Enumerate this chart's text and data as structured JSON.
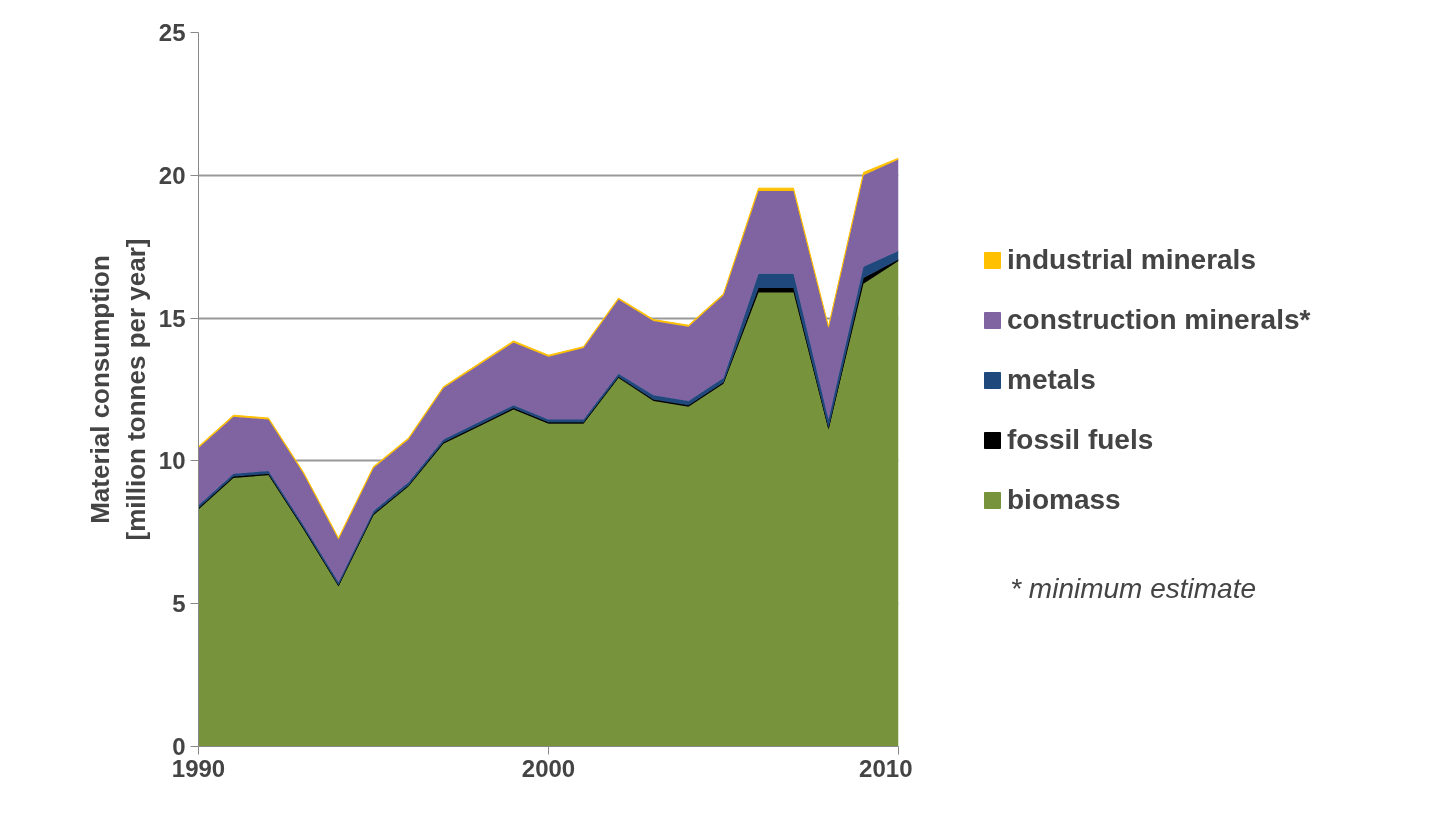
{
  "chart_data": {
    "type": "area",
    "stacked": true,
    "ylabel": "Material consumption\n[million tonnes per year]",
    "x": [
      1990,
      1991,
      1992,
      1993,
      1994,
      1995,
      1996,
      1997,
      1998,
      1999,
      2000,
      2001,
      2002,
      2003,
      2004,
      2005,
      2006,
      2007,
      2008,
      2009,
      2010
    ],
    "series": [
      {
        "name": "biomass",
        "color": "#77933c",
        "values": [
          8.3,
          9.4,
          9.5,
          7.6,
          5.6,
          8.1,
          9.1,
          10.6,
          11.2,
          11.8,
          11.3,
          11.3,
          12.9,
          12.1,
          11.9,
          12.7,
          15.9,
          15.9,
          11.1,
          16.2,
          17.0
        ]
      },
      {
        "name": "fossil fuels",
        "color": "#000000",
        "values": [
          0.05,
          0.05,
          0.05,
          0.05,
          0.05,
          0.05,
          0.05,
          0.05,
          0.05,
          0.05,
          0.05,
          0.05,
          0.05,
          0.05,
          0.05,
          0.05,
          0.15,
          0.15,
          0.05,
          0.2,
          0.05
        ]
      },
      {
        "name": "metals",
        "color": "#1f497d",
        "values": [
          0.1,
          0.1,
          0.1,
          0.1,
          0.1,
          0.1,
          0.1,
          0.1,
          0.1,
          0.1,
          0.1,
          0.1,
          0.1,
          0.15,
          0.15,
          0.15,
          0.5,
          0.5,
          0.3,
          0.4,
          0.3
        ]
      },
      {
        "name": "construction minerals*",
        "color": "#8064a2",
        "values": [
          2.0,
          2.0,
          1.8,
          1.8,
          1.5,
          1.5,
          1.5,
          1.8,
          2.0,
          2.2,
          2.2,
          2.5,
          2.6,
          2.6,
          2.6,
          2.9,
          2.9,
          2.9,
          3.2,
          3.2,
          3.2
        ]
      },
      {
        "name": "industrial minerals",
        "color": "#ffc000",
        "values": [
          0.05,
          0.05,
          0.05,
          0.05,
          0.05,
          0.05,
          0.05,
          0.05,
          0.05,
          0.05,
          0.05,
          0.05,
          0.05,
          0.05,
          0.05,
          0.05,
          0.1,
          0.1,
          0.05,
          0.1,
          0.05
        ]
      }
    ],
    "xlim": [
      1990,
      2010
    ],
    "xticks": [
      1990,
      2000,
      2010
    ],
    "ylim": [
      0,
      25
    ],
    "yticks": [
      0,
      5,
      10,
      15,
      20,
      25
    ],
    "grid": "y",
    "legend": "right",
    "annotations": [
      "*  minimum estimate"
    ]
  }
}
